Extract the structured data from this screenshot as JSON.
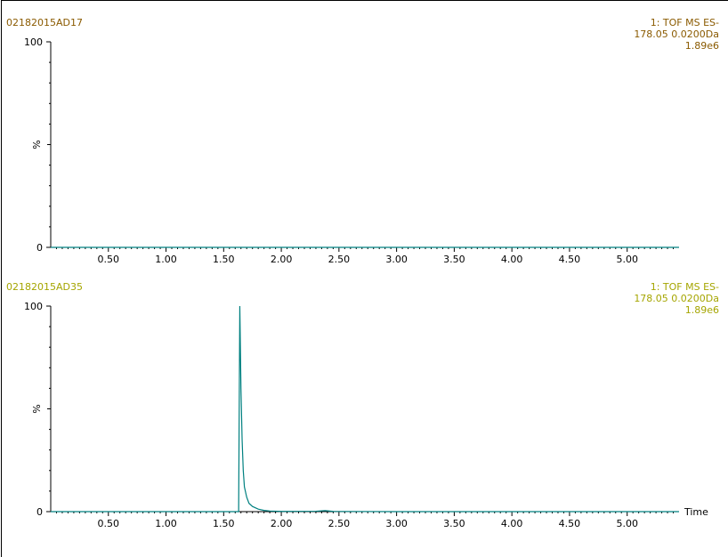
{
  "colors": {
    "top": "#8a5a00",
    "bottom": "#a5a500",
    "trace": "#008080",
    "axis": "#000000"
  },
  "panels": [
    {
      "sample": "02182015AD17",
      "info": [
        "1: TOF MS ES-",
        "178.05 0.0200Da",
        "1.89e6"
      ]
    },
    {
      "sample": "02182015AD35",
      "info": [
        "1: TOF MS ES-",
        "178.05 0.0200Da",
        "1.89e6"
      ]
    }
  ],
  "chart_data": [
    {
      "type": "line",
      "title": "02182015AD17",
      "xlabel": "",
      "ylabel": "%",
      "xlim": [
        0.0,
        5.45
      ],
      "ylim": [
        0,
        100
      ],
      "x_ticks": [
        "0.50",
        "1.00",
        "1.50",
        "2.00",
        "2.50",
        "3.00",
        "3.50",
        "4.00",
        "4.50",
        "5.00"
      ],
      "y_ticks": [
        "0",
        "100"
      ],
      "series": [
        {
          "x": [
            0.0,
            5.45
          ],
          "y": [
            0,
            0
          ]
        }
      ]
    },
    {
      "type": "line",
      "title": "02182015AD35",
      "xlabel": "Time",
      "ylabel": "%",
      "xlim": [
        0.0,
        5.45
      ],
      "ylim": [
        0,
        100
      ],
      "x_ticks": [
        "0.50",
        "1.00",
        "1.50",
        "2.00",
        "2.50",
        "3.00",
        "3.50",
        "4.00",
        "4.50",
        "5.00"
      ],
      "y_ticks": [
        "0",
        "100"
      ],
      "series": [
        {
          "x": [
            0.0,
            1.63,
            1.64,
            1.65,
            1.66,
            1.67,
            1.68,
            1.7,
            1.72,
            1.75,
            1.8,
            1.85,
            1.9,
            2.0,
            2.3,
            2.38,
            2.45,
            3.0,
            5.45
          ],
          "y": [
            0,
            0,
            100,
            60,
            35,
            20,
            12,
            7,
            4,
            2.5,
            1.2,
            0.6,
            0.3,
            0.1,
            0.2,
            0.5,
            0.1,
            0,
            0
          ]
        }
      ]
    }
  ]
}
